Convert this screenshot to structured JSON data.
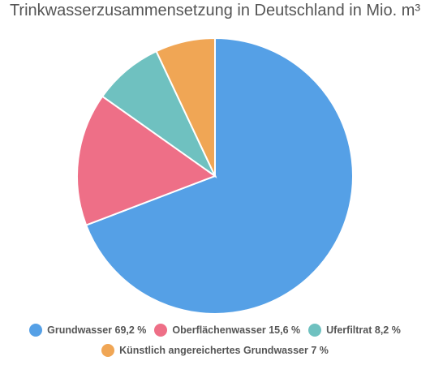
{
  "chart_data": {
    "type": "pie",
    "title": "Trinkwasserzusammensetzung in Deutschland in Mio. m³",
    "slices": [
      {
        "label": "Grundwasser",
        "value": 69.2,
        "legend": "Grundwasser 69,2 %",
        "color": "#55a0e6"
      },
      {
        "label": "Oberflächenwasser",
        "value": 15.6,
        "legend": "Oberflächenwasser 15,6 %",
        "color": "#ee6f87"
      },
      {
        "label": "Uferfiltrat",
        "value": 8.2,
        "legend": "Uferfiltrat 8,2 %",
        "color": "#6fc1c0"
      },
      {
        "label": "Künstlich angereichertes Grundwasser",
        "value": 7,
        "legend": "Künstlich angereichertes Grundwasser 7 %",
        "color": "#f0a655"
      }
    ],
    "legend_position": "bottom"
  }
}
